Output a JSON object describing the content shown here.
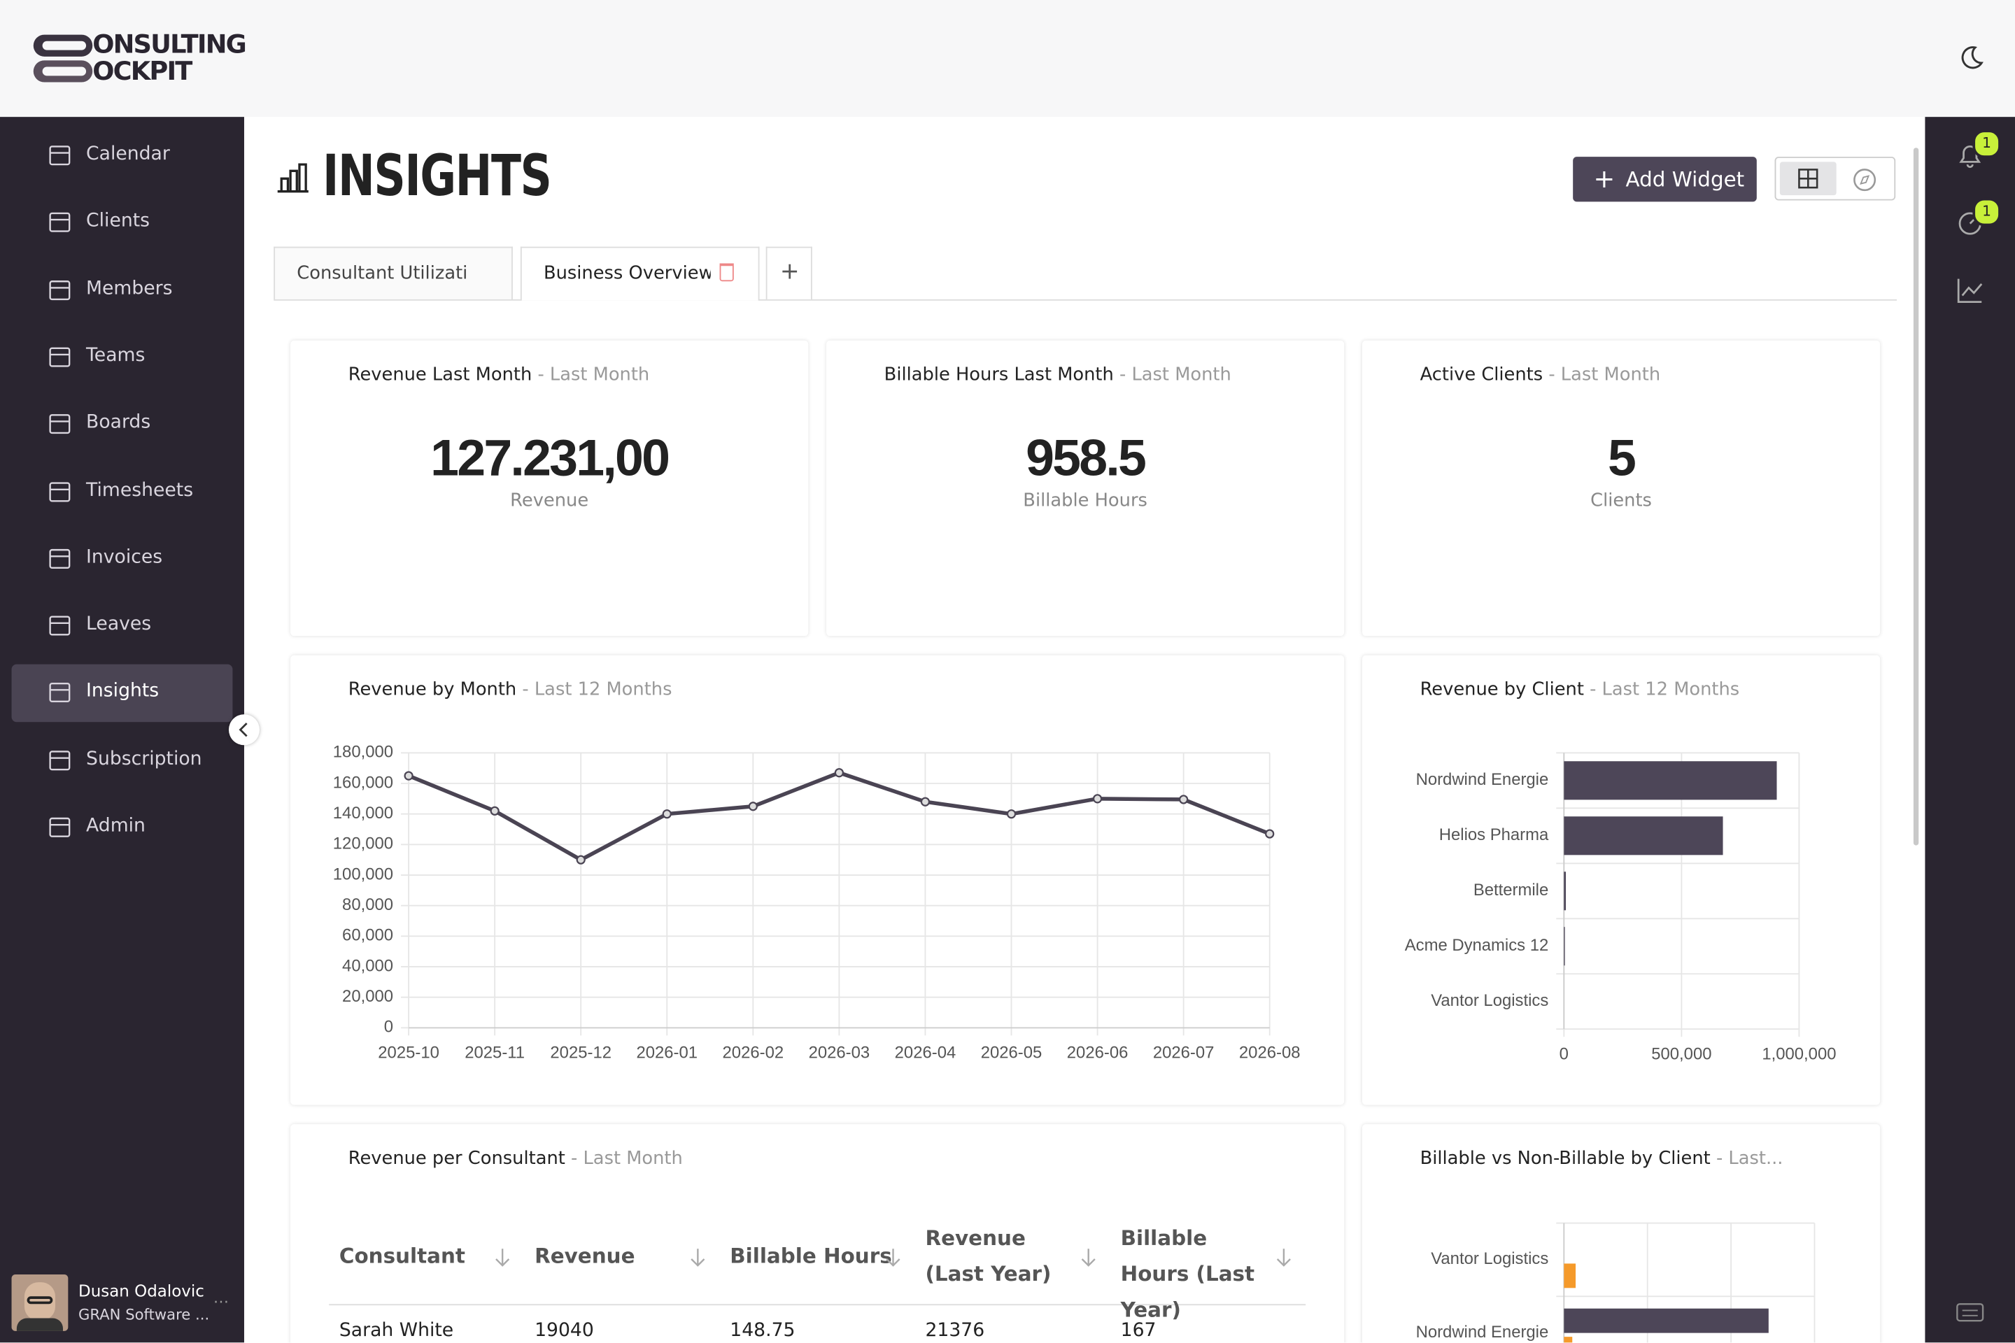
{
  "brand": {
    "line1": "ONSULTING",
    "line2": "OCKPIT"
  },
  "nav": [
    {
      "label": "Calendar"
    },
    {
      "label": "Clients"
    },
    {
      "label": "Members"
    },
    {
      "label": "Teams"
    },
    {
      "label": "Boards"
    },
    {
      "label": "Timesheets"
    },
    {
      "label": "Invoices"
    },
    {
      "label": "Leaves"
    },
    {
      "label": "Insights",
      "active": true
    },
    {
      "label": "Subscription"
    },
    {
      "label": "Admin"
    }
  ],
  "user": {
    "name": "Dusan Odalovic",
    "org": "GRAN Software ..."
  },
  "notifications": {
    "alerts": 1,
    "timers": 1
  },
  "page": {
    "title": "INSIGHTS",
    "add_button": "Add Widget",
    "tabs": [
      {
        "label": "Consultant Utilization"
      },
      {
        "label": "Business Overview",
        "active": true
      }
    ]
  },
  "kpis": [
    {
      "title": "Revenue Last Month",
      "subtitle": "- Last Month",
      "value": "127.231,00",
      "unit": "Revenue"
    },
    {
      "title": "Billable Hours Last Month",
      "subtitle": "- Last Month",
      "value": 958.5,
      "unit": "Billable Hours"
    },
    {
      "title": "Active Clients",
      "subtitle": "- Last Month",
      "value": 5,
      "unit": "Clients"
    }
  ],
  "table": {
    "title": "Revenue per Consultant",
    "subtitle": "- Last Month",
    "columns": [
      "Consultant",
      "Revenue",
      "Billable Hours",
      "Revenue (Last Year)",
      "Billable Hours (Last Year)"
    ],
    "rows": [
      [
        "Sarah White",
        19040,
        148.75,
        21376,
        167
      ]
    ]
  },
  "chart_data": [
    {
      "type": "line",
      "title": "Revenue by Month",
      "subtitle": "- Last 12 Months",
      "categories": [
        "2025-10",
        "2025-11",
        "2025-12",
        "2026-01",
        "2026-02",
        "2026-03",
        "2026-04",
        "2026-05",
        "2026-06",
        "2026-07",
        "2026-08"
      ],
      "values": [
        165000,
        142000,
        110000,
        140000,
        145000,
        167000,
        148000,
        140000,
        150000,
        149500,
        127000
      ],
      "color": "#4a4453",
      "ylim": [
        0,
        180000
      ],
      "yticks": [
        0,
        {
          "value": 20000,
          "label": "20,000"
        },
        {
          "value": 40000,
          "label": "40,000"
        },
        {
          "value": 60000,
          "label": "60,000"
        },
        {
          "value": 80000,
          "label": "80,000"
        },
        {
          "value": 100000,
          "label": "100,000"
        },
        {
          "value": 120000,
          "label": "120,000"
        },
        {
          "value": 140000,
          "label": "140,000"
        },
        {
          "value": 160000,
          "label": "160,000"
        },
        {
          "value": 180000,
          "label": "180,000"
        }
      ],
      "grid": true
    },
    {
      "type": "bar",
      "orientation": "horizontal",
      "title": "Revenue by Client",
      "subtitle": "- Last 12 Months",
      "categories": [
        "Nordwind Energie",
        "Helios Pharma",
        "Bettermile",
        "Acme Dynamics 12",
        "Vantor Logistics"
      ],
      "values": [
        905000,
        676000,
        8000,
        4000,
        0
      ],
      "color": "#4d4658",
      "xlim": [
        0,
        1000000
      ],
      "xticks": [
        0,
        {
          "value": 500000,
          "label": "500,000"
        },
        {
          "value": 1000000,
          "label": "1,000,000"
        }
      ],
      "grid": true
    },
    {
      "type": "bar",
      "orientation": "horizontal",
      "title": "Billable vs Non-Billable by Client",
      "subtitle": "- Last...",
      "categories": [
        "Vantor Logistics",
        "Nordwind Energie"
      ],
      "series": [
        {
          "color": "#4d4658",
          "values": [
            0,
            245
          ]
        },
        {
          "color": "#f59a2a",
          "values": [
            14,
            10
          ]
        }
      ],
      "xlim": [
        0,
        300
      ],
      "grid": true
    }
  ]
}
